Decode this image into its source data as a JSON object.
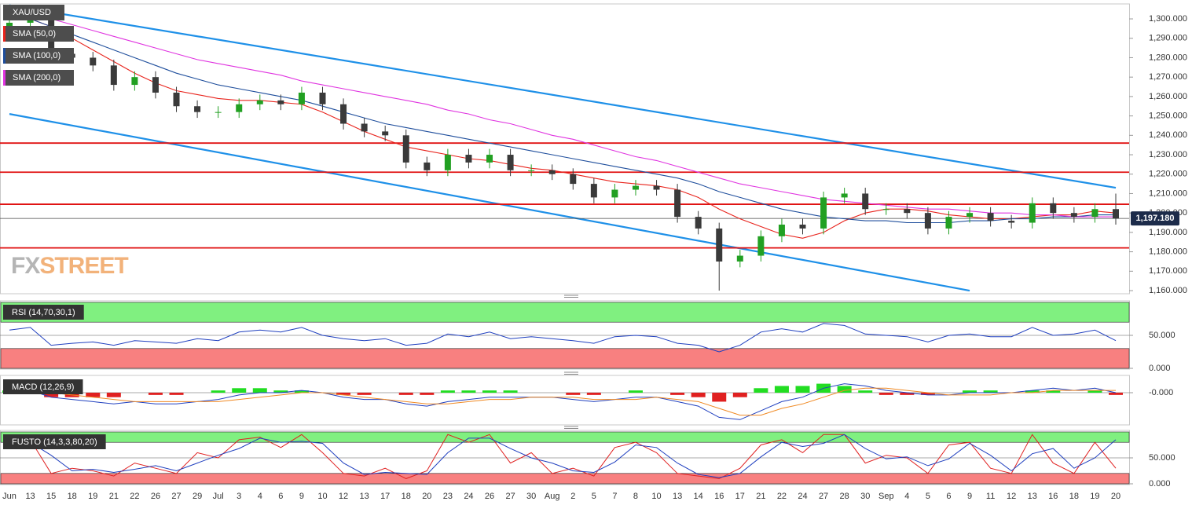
{
  "chart_data": [
    {
      "type": "candlestick",
      "title": "XAU/USD",
      "categories": [
        "Jun",
        "13",
        "15",
        "18",
        "19",
        "21",
        "22",
        "26",
        "27",
        "29",
        "Jul",
        "3",
        "4",
        "6",
        "9",
        "10",
        "12",
        "13",
        "17",
        "18",
        "20",
        "23",
        "24",
        "26",
        "27",
        "30",
        "Aug",
        "2",
        "5",
        "7",
        "8",
        "10",
        "13",
        "14",
        "16",
        "17",
        "21",
        "22",
        "24",
        "27",
        "28",
        "30",
        "Sep",
        "4",
        "5",
        "6",
        "9",
        "11",
        "12",
        "13",
        "16",
        "18",
        "19",
        "20"
      ],
      "open": [
        1296,
        1298,
        1300,
        1282,
        1280,
        1276,
        1266,
        1270,
        1262,
        1255,
        1252,
        1252,
        1256,
        1258,
        1256,
        1262,
        1256,
        1246,
        1242,
        1240,
        1226,
        1222,
        1230,
        1226,
        1230,
        1222,
        1222,
        1220,
        1215,
        1208,
        1212,
        1214,
        1212,
        1198,
        1192,
        1175,
        1178,
        1188,
        1194,
        1192,
        1208,
        1210,
        1202,
        1202,
        1200,
        1192,
        1198,
        1200,
        1196,
        1195,
        1205,
        1200,
        1198,
        1202
      ],
      "high": [
        1301,
        1303,
        1303,
        1285,
        1283,
        1279,
        1273,
        1273,
        1265,
        1258,
        1255,
        1259,
        1261,
        1261,
        1265,
        1265,
        1259,
        1249,
        1245,
        1243,
        1229,
        1233,
        1233,
        1233,
        1233,
        1225,
        1225,
        1223,
        1218,
        1215,
        1217,
        1217,
        1215,
        1201,
        1195,
        1181,
        1191,
        1197,
        1197,
        1211,
        1213,
        1213,
        1205,
        1205,
        1203,
        1201,
        1203,
        1203,
        1199,
        1208,
        1208,
        1203,
        1205,
        1210
      ],
      "low": [
        1293,
        1295,
        1279,
        1277,
        1273,
        1263,
        1263,
        1259,
        1252,
        1249,
        1249,
        1249,
        1253,
        1253,
        1253,
        1253,
        1243,
        1239,
        1237,
        1223,
        1219,
        1219,
        1223,
        1223,
        1219,
        1219,
        1217,
        1212,
        1205,
        1205,
        1209,
        1209,
        1195,
        1189,
        1160,
        1172,
        1175,
        1185,
        1189,
        1189,
        1205,
        1199,
        1199,
        1197,
        1189,
        1189,
        1195,
        1193,
        1192,
        1192,
        1197,
        1195,
        1195,
        1194
      ],
      "close": [
        1298,
        1300,
        1282,
        1280,
        1276,
        1266,
        1270,
        1262,
        1255,
        1252,
        1252,
        1256,
        1258,
        1256,
        1262,
        1256,
        1246,
        1242,
        1240,
        1226,
        1222,
        1230,
        1226,
        1230,
        1222,
        1222,
        1220,
        1215,
        1208,
        1212,
        1214,
        1212,
        1198,
        1192,
        1175,
        1178,
        1188,
        1194,
        1192,
        1208,
        1210,
        1202,
        1202,
        1200,
        1192,
        1198,
        1200,
        1196,
        1195,
        1205,
        1200,
        1198,
        1202,
        1197.18
      ],
      "up_color": "#22a022",
      "down_color": "#3a3a3a",
      "series": [
        {
          "name": "SMA (50,0)",
          "color": "#e8231c",
          "values": [
            1302,
            1300,
            1296,
            1290,
            1284,
            1278,
            1272,
            1267,
            1263,
            1261,
            1259,
            1258,
            1258,
            1257,
            1256,
            1252,
            1247,
            1242,
            1238,
            1234,
            1232,
            1230,
            1228,
            1227,
            1225,
            1223,
            1222,
            1220,
            1218,
            1216,
            1215,
            1214,
            1212,
            1208,
            1202,
            1197,
            1193,
            1189,
            1187,
            1190,
            1196,
            1200,
            1202,
            1202,
            1201,
            1199,
            1198,
            1197,
            1197,
            1198,
            1199,
            1199,
            1201,
            1200
          ]
        },
        {
          "name": "SMA (100,0)",
          "color": "#1f4e9c",
          "values": [
            1303,
            1300,
            1296,
            1292,
            1288,
            1284,
            1280,
            1276,
            1272,
            1269,
            1266,
            1264,
            1262,
            1260,
            1258,
            1255,
            1252,
            1249,
            1246,
            1244,
            1242,
            1240,
            1238,
            1236,
            1234,
            1232,
            1230,
            1228,
            1226,
            1224,
            1222,
            1220,
            1218,
            1215,
            1211,
            1208,
            1205,
            1202,
            1200,
            1198,
            1197,
            1196,
            1196,
            1195,
            1195,
            1195,
            1196,
            1196,
            1197,
            1197,
            1198,
            1198,
            1199,
            1199
          ]
        },
        {
          "name": "SMA (200,0)",
          "color": "#e034e0",
          "values": [
            1305,
            1302,
            1300,
            1297,
            1294,
            1291,
            1288,
            1285,
            1282,
            1279,
            1277,
            1275,
            1273,
            1271,
            1268,
            1266,
            1264,
            1262,
            1260,
            1258,
            1256,
            1253,
            1251,
            1248,
            1246,
            1243,
            1240,
            1238,
            1235,
            1232,
            1229,
            1227,
            1224,
            1221,
            1218,
            1215,
            1213,
            1211,
            1209,
            1207,
            1206,
            1205,
            1204,
            1203,
            1202,
            1202,
            1201,
            1200,
            1200,
            1199,
            1199,
            1198,
            1198,
            1198
          ]
        }
      ],
      "levels": [
        {
          "value": 1236,
          "color": "#e01010"
        },
        {
          "value": 1221,
          "color": "#e01010"
        },
        {
          "value": 1204.5,
          "color": "#e01010"
        },
        {
          "value": 1182,
          "color": "#e01010"
        }
      ],
      "current": {
        "value": 1197.18,
        "label": "1,197.180",
        "color": "#1c2b4a"
      },
      "trendlines": [
        {
          "x": [
            0,
            53
          ],
          "values": [
            1307,
            1213
          ],
          "color": "#1e90e8"
        },
        {
          "x": [
            0,
            46
          ],
          "values": [
            1251,
            1160
          ],
          "color": "#1e90e8"
        }
      ],
      "watermark": [
        "FX",
        "STREET"
      ],
      "ylim": [
        1158.8,
        1307.7
      ],
      "yticks": [
        {
          "value": 1160,
          "label": "1,160.000"
        },
        {
          "value": 1170,
          "label": "1,170.000"
        },
        {
          "value": 1180,
          "label": "1,180.000"
        },
        {
          "value": 1190,
          "label": "1,190.000"
        },
        {
          "value": 1200,
          "label": "1,200.000"
        },
        {
          "value": 1210,
          "label": "1,210.000"
        },
        {
          "value": 1220,
          "label": "1,220.000"
        },
        {
          "value": 1230,
          "label": "1,230.000"
        },
        {
          "value": 1240,
          "label": "1,240.000"
        },
        {
          "value": 1250,
          "label": "1,250.000"
        },
        {
          "value": 1260,
          "label": "1,260.000"
        },
        {
          "value": 1270,
          "label": "1,270.000"
        },
        {
          "value": 1280,
          "label": "1,280.000"
        },
        {
          "value": 1290,
          "label": "1,290.000"
        },
        {
          "value": 1300,
          "label": "1,300.000"
        }
      ]
    },
    {
      "type": "line",
      "title": "RSI (14,70,30,1)",
      "series": [
        {
          "color": "#1f3fbf",
          "values": [
            58,
            62,
            35,
            38,
            40,
            35,
            42,
            40,
            38,
            45,
            42,
            55,
            58,
            55,
            62,
            50,
            45,
            42,
            45,
            35,
            38,
            52,
            48,
            55,
            45,
            48,
            45,
            42,
            38,
            48,
            50,
            48,
            38,
            35,
            25,
            35,
            55,
            60,
            55,
            68,
            65,
            52,
            50,
            48,
            40,
            50,
            52,
            48,
            48,
            62,
            50,
            52,
            58,
            42
          ]
        }
      ],
      "zones": [
        {
          "from": 70,
          "to": 100,
          "color": "#80f080"
        },
        {
          "from": 0,
          "to": 30,
          "color": "#f88080"
        }
      ],
      "ylim": [
        0,
        100
      ],
      "yticks": [
        {
          "value": 0,
          "label": "0.000"
        },
        {
          "value": 50,
          "label": "50.000"
        }
      ]
    },
    {
      "type": "macd",
      "title": "MACD (12,26,9)",
      "histogram": [
        1,
        0,
        -2,
        -2,
        -2,
        -2,
        0,
        -1,
        -1,
        0,
        1,
        2,
        2,
        1,
        1,
        0,
        -1,
        -1,
        0,
        -1,
        -1,
        1,
        1,
        1,
        1,
        0,
        0,
        -1,
        -1,
        0,
        1,
        0,
        -1,
        -2,
        -4,
        -2,
        2,
        3,
        3,
        4,
        3,
        1,
        -1,
        -1,
        -1,
        0,
        1,
        1,
        0,
        1,
        1,
        0,
        1,
        -1
      ],
      "up_color": "#22dd22",
      "down_color": "#e02020",
      "series": [
        {
          "color": "#1f3fbf",
          "values": [
            2,
            1,
            -2,
            -3,
            -4,
            -5,
            -4,
            -5,
            -5,
            -4,
            -3,
            -1,
            0,
            0,
            1,
            0,
            -2,
            -3,
            -3,
            -5,
            -6,
            -4,
            -3,
            -2,
            -2,
            -2,
            -2,
            -3,
            -4,
            -3,
            -2,
            -2,
            -4,
            -6,
            -11,
            -12,
            -8,
            -4,
            -2,
            2,
            4,
            3,
            1,
            0,
            -1,
            -1,
            0,
            0,
            0,
            1,
            2,
            1,
            2,
            0
          ]
        },
        {
          "color": "#f08a24",
          "values": [
            1,
            1,
            0,
            -1,
            -2,
            -3,
            -4,
            -4,
            -4,
            -4,
            -4,
            -3,
            -2,
            -1,
            0,
            0,
            -1,
            -2,
            -3,
            -4,
            -5,
            -5,
            -4,
            -3,
            -3,
            -2,
            -2,
            -2,
            -3,
            -3,
            -3,
            -2,
            -3,
            -4,
            -7,
            -10,
            -10,
            -7,
            -5,
            -2,
            1,
            2,
            2,
            1,
            0,
            -1,
            -1,
            -1,
            0,
            0,
            1,
            1,
            1,
            1
          ]
        }
      ],
      "ylim": [
        -14,
        7
      ],
      "yticks": [
        {
          "value": 0,
          "label": "-0.000"
        }
      ]
    },
    {
      "type": "line",
      "title": "FUSTO (14,3,3,80,20)",
      "series": [
        {
          "color": "#e02020",
          "values": [
            80,
            85,
            20,
            30,
            25,
            15,
            40,
            30,
            20,
            60,
            50,
            85,
            90,
            70,
            95,
            60,
            20,
            15,
            30,
            10,
            25,
            95,
            80,
            95,
            40,
            60,
            20,
            30,
            15,
            70,
            80,
            60,
            20,
            15,
            10,
            30,
            75,
            85,
            60,
            95,
            95,
            40,
            55,
            50,
            20,
            75,
            80,
            30,
            20,
            95,
            40,
            20,
            80,
            30
          ]
        },
        {
          "color": "#1f3fbf",
          "values": [
            75,
            80,
            55,
            25,
            28,
            22,
            28,
            35,
            25,
            40,
            55,
            68,
            88,
            80,
            82,
            78,
            40,
            18,
            22,
            20,
            18,
            60,
            88,
            88,
            68,
            50,
            40,
            25,
            22,
            42,
            75,
            70,
            40,
            18,
            12,
            20,
            52,
            80,
            72,
            78,
            95,
            68,
            48,
            52,
            35,
            48,
            78,
            55,
            25,
            58,
            68,
            30,
            50,
            85
          ]
        }
      ],
      "zones": [
        {
          "from": 80,
          "to": 100,
          "color": "#80f080"
        },
        {
          "from": 0,
          "to": 20,
          "color": "#f88080"
        }
      ],
      "ylim": [
        0,
        100
      ],
      "yticks": [
        {
          "value": 0,
          "label": "0.000"
        },
        {
          "value": 50,
          "label": "50.000"
        }
      ]
    }
  ]
}
